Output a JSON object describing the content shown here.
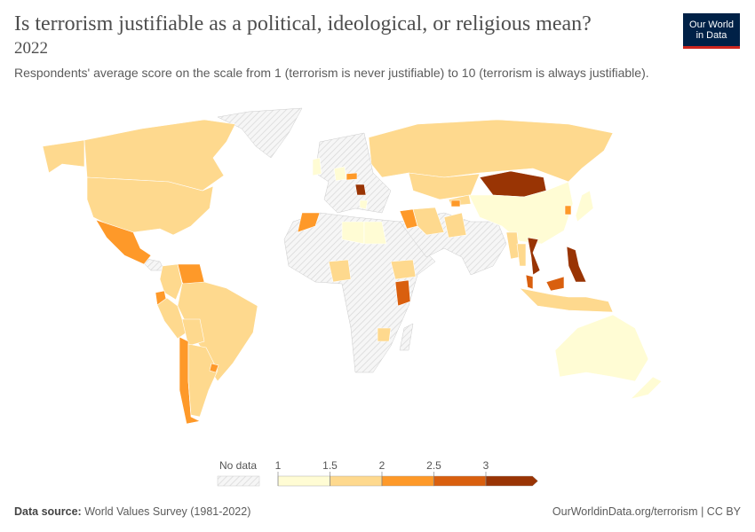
{
  "header": {
    "title": "Is terrorism justifiable as a political, ideological, or religious mean?",
    "year": "2022",
    "subtitle": "Respondents' average score on the scale from 1 (terrorism is never justifiable) to 10 (terrorism is always justifiable).",
    "logo_line1": "Our World",
    "logo_line2": "in Data"
  },
  "chart_data": {
    "type": "choropleth",
    "year": "2022",
    "legend": {
      "no_data_label": "No data",
      "ticks": [
        "1",
        "1.5",
        "2",
        "2.5",
        "3"
      ],
      "bins": [
        {
          "range": [
            1,
            1.5
          ],
          "color": "#fffcd4"
        },
        {
          "range": [
            1.5,
            2
          ],
          "color": "#fed98e"
        },
        {
          "range": [
            2,
            2.5
          ],
          "color": "#fe9929"
        },
        {
          "range": [
            2.5,
            3
          ],
          "color": "#d95f0e"
        },
        {
          "range": [
            3,
            null
          ],
          "color": "#993404"
        }
      ],
      "no_data_color": "hatched grey",
      "placement": "bottom-center"
    },
    "countries_bin": {
      "Canada": "1.5-2",
      "United States": "1.5-2",
      "Mexico": "2-2.5",
      "Colombia": "1.5-2",
      "Venezuela": "2-2.5",
      "Ecuador": "2-2.5",
      "Peru": "1.5-2",
      "Brazil": "1.5-2",
      "Bolivia": "1.5-2",
      "Chile": "2-2.5",
      "Argentina": "1.5-2",
      "Uruguay": "2-2.5",
      "United Kingdom": "1-1.5",
      "Germany": "1-1.5",
      "Czechia": "2-2.5",
      "Serbia": "3+",
      "Greece": "1-1.5",
      "Russia": "1.5-2",
      "Kazakhstan": "1.5-2",
      "Mongolia": "3+",
      "China": "1-1.5",
      "Japan": "1-1.5",
      "South Korea": "2-2.5",
      "Iran": "1.5-2",
      "Iraq": "2-2.5",
      "Armenia": "2-2.5",
      "Egypt": "1-1.5",
      "Libya": "1-1.5",
      "Morocco": "2-2.5",
      "Nigeria": "1.5-2",
      "Ethiopia": "1.5-2",
      "Kenya": "2.5-3",
      "Zimbabwe": "1.5-2",
      "Myanmar": "1.5-2",
      "Thailand": "1.5-2",
      "Vietnam": "3+",
      "Malaysia": "2.5-3",
      "Philippines": "3+",
      "Indonesia": "1.5-2",
      "Australia": "1-1.5",
      "New Zealand": "1-1.5",
      "Pakistan": "1.5-2",
      "Tajikistan": "1.5-2",
      "Kyrgyzstan": "1.5-2"
    }
  },
  "footer": {
    "source_label": "Data source:",
    "source": "World Values Survey (1981-2022)",
    "link": "OurWorldinData.org/terrorism | CC BY"
  }
}
